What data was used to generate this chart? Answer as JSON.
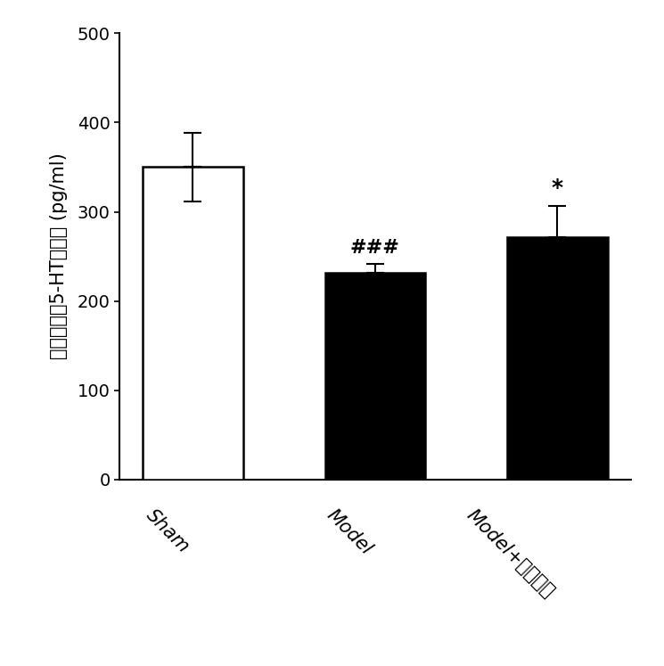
{
  "categories": [
    "Sham",
    "Model",
    "Model+苒柄花素"
  ],
  "values": [
    350,
    232,
    272
  ],
  "errors": [
    38,
    10,
    35
  ],
  "bar_colors": [
    "#ffffff",
    "#000000",
    "#000000"
  ],
  "bar_edgecolors": [
    "#000000",
    "#000000",
    "#000000"
  ],
  "ylabel": "小鼠海马区5-HT的含量 (pg/ml)",
  "ylim": [
    0,
    500
  ],
  "yticks": [
    0,
    100,
    200,
    300,
    400,
    500
  ],
  "annotation_model": "###",
  "annotation_formononetin": "*",
  "background_color": "#ffffff",
  "bar_width": 0.55,
  "errorbar_capsize": 7,
  "errorbar_linewidth": 1.5,
  "tick_label_fontsize": 15,
  "ylabel_fontsize": 15
}
